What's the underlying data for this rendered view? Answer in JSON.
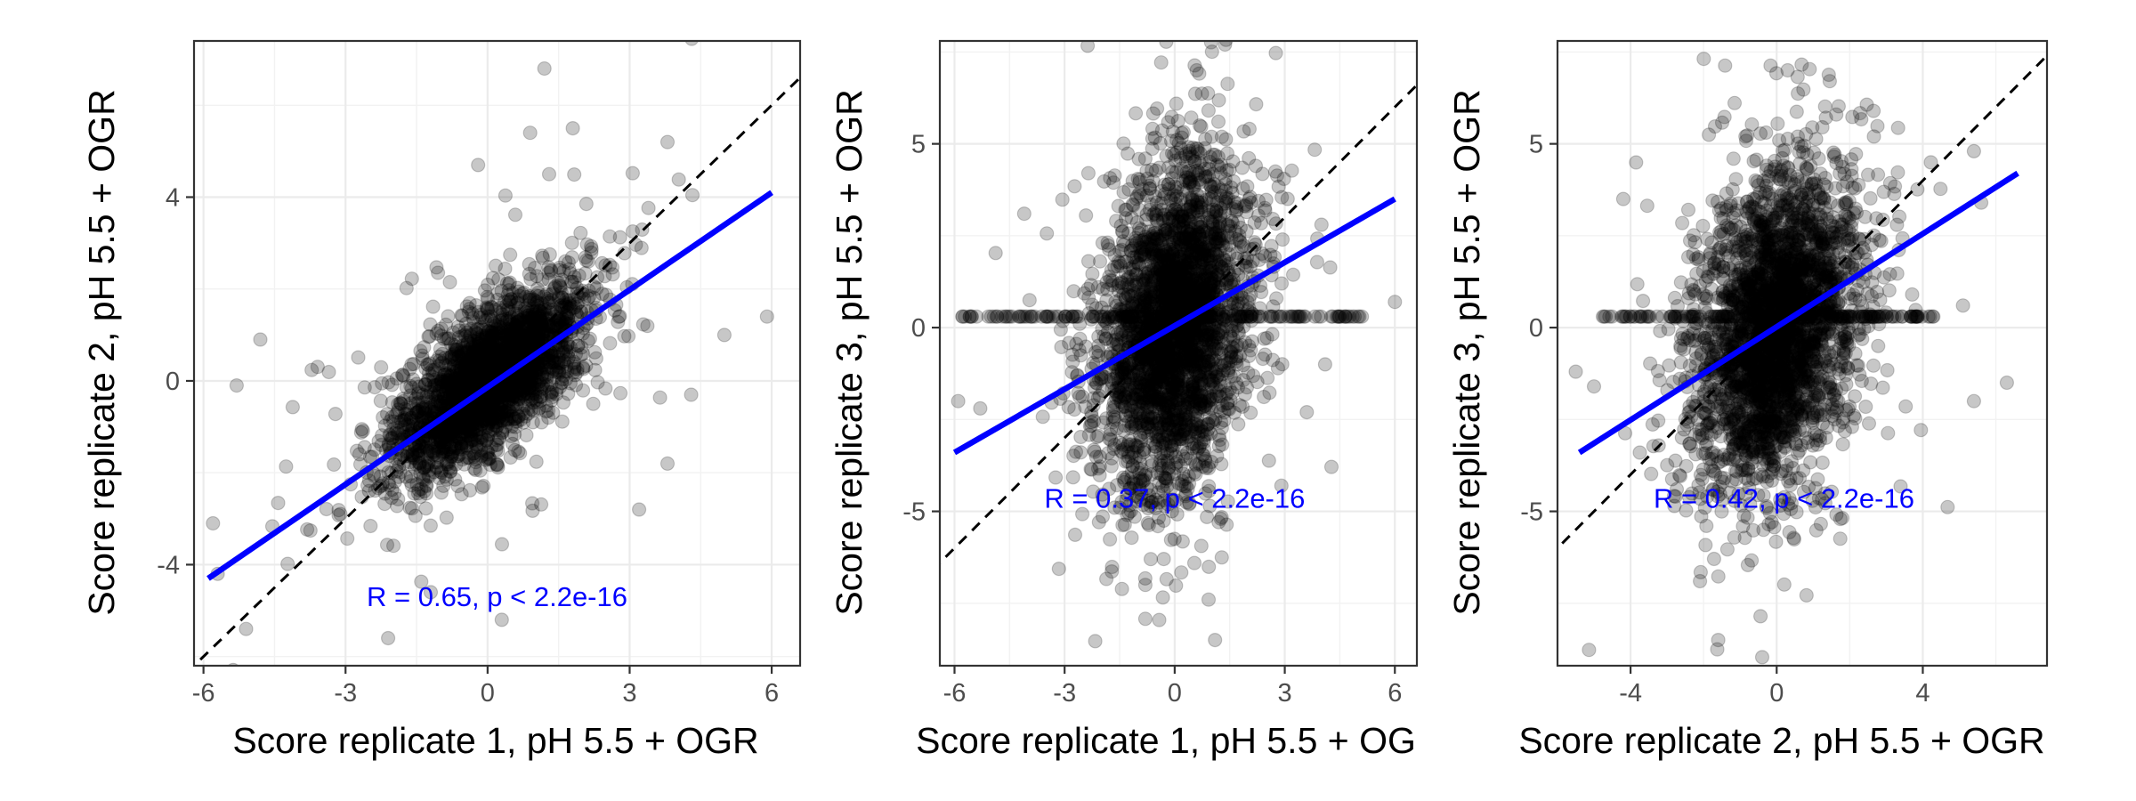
{
  "chart_data": [
    {
      "type": "scatter",
      "xlabel": "Score replicate 1, pH 5.5 + OGR",
      "ylabel": "Score replicate 2, pH 5.5 + OGR",
      "xlim": [
        -6.2,
        6.6
      ],
      "ylim": [
        -6.2,
        7.4
      ],
      "xticks": [
        -6,
        -3,
        0,
        3,
        6
      ],
      "xtick_labels": [
        "-6",
        "-3",
        "0",
        "3",
        "6"
      ],
      "yticks": [
        -4,
        0,
        4
      ],
      "ytick_labels": [
        "-4",
        "0",
        "4"
      ],
      "grid": true,
      "point_color": "#000000",
      "point_alpha": 0.22,
      "cloud": {
        "n": 2600,
        "x_mean": 0,
        "x_sd": 1.0,
        "y_sd": 1.0,
        "slope": 0.65,
        "resid_sd": 0.75,
        "outlier_frac": 0.06
      },
      "outliers": [
        {
          "x": 1.2,
          "y": 6.8
        },
        {
          "x": 0.9,
          "y": 5.4
        },
        {
          "x": 1.8,
          "y": 5.5
        },
        {
          "x": 3.8,
          "y": 5.2
        },
        {
          "x": -0.2,
          "y": 4.7
        },
        {
          "x": 1.3,
          "y": 4.5
        },
        {
          "x": -5.8,
          "y": -3.1
        },
        {
          "x": -5.7,
          "y": -4.2
        },
        {
          "x": -5.1,
          "y": -5.4
        },
        {
          "x": 0.3,
          "y": -5.2
        },
        {
          "x": -2.1,
          "y": -5.6
        },
        {
          "x": -1.2,
          "y": -4.6
        },
        {
          "x": 5.9,
          "y": 1.4
        },
        {
          "x": 5.0,
          "y": 1.0
        },
        {
          "x": 4.3,
          "y": -0.3
        },
        {
          "x": 3.8,
          "y": -1.8
        },
        {
          "x": 3.2,
          "y": -2.8
        },
        {
          "x": -4.8,
          "y": 0.9
        },
        {
          "x": -5.3,
          "y": -0.1
        }
      ],
      "regression_line": {
        "x": [
          -5.9,
          6.0
        ],
        "y": [
          -4.3,
          4.1
        ],
        "color": "#0000ff"
      },
      "identity_line": {
        "slope": 1,
        "intercept": 0,
        "color": "#000000",
        "style": "dashed"
      },
      "annotation": {
        "text": "R = 0.65, p < 2.2e-16",
        "x": 0.2,
        "y": -4.9
      }
    },
    {
      "type": "scatter",
      "xlabel": "Score replicate 1, pH 5.5 + OG",
      "ylabel": "Score replicate 3, pH 5.5 + OGR",
      "xlim": [
        -6.4,
        6.6
      ],
      "ylim": [
        -9.2,
        7.8
      ],
      "xticks": [
        -6,
        -3,
        0,
        3,
        6
      ],
      "xtick_labels": [
        "-6",
        "-3",
        "0",
        "3",
        "6"
      ],
      "yticks": [
        -5,
        0,
        5
      ],
      "ytick_labels": [
        "-5",
        "0",
        "5"
      ],
      "grid": true,
      "point_color": "#000000",
      "point_alpha": 0.22,
      "cloud": {
        "n": 3000,
        "x_mean": 0,
        "x_sd": 1.0,
        "y_sd": 2.4,
        "slope": 0.55,
        "resid_sd": 2.2,
        "outlier_frac": 0.04
      },
      "zero_band": {
        "y": 0.3,
        "x_range": [
          -5.9,
          5.2
        ],
        "n": 160
      },
      "outliers": [
        {
          "x": 0.6,
          "y": 7.0
        },
        {
          "x": -4.1,
          "y": 3.1
        },
        {
          "x": -5.3,
          "y": -2.2
        },
        {
          "x": -5.9,
          "y": -2.0
        },
        {
          "x": 1.1,
          "y": -8.5
        },
        {
          "x": -0.8,
          "y": -7.0
        },
        {
          "x": 6.0,
          "y": 0.7
        },
        {
          "x": 4.1,
          "y": -1.0
        },
        {
          "x": 4.0,
          "y": 2.8
        },
        {
          "x": 3.6,
          "y": -2.3
        }
      ],
      "regression_line": {
        "x": [
          -6.0,
          6.0
        ],
        "y": [
          -3.4,
          3.5
        ],
        "color": "#0000ff"
      },
      "identity_line": {
        "slope": 1,
        "intercept": 0,
        "color": "#000000",
        "style": "dashed"
      },
      "annotation": {
        "text": "R = 0.37, p < 2.2e-16",
        "x": 0.0,
        "y": -4.9
      }
    },
    {
      "type": "scatter",
      "xlabel": "Score replicate 2, pH 5.5 + OGR",
      "ylabel": "Score replicate 3, pH 5.5 + OGR",
      "xlim": [
        -6.0,
        7.4
      ],
      "ylim": [
        -9.2,
        7.8
      ],
      "xticks": [
        -4,
        0,
        4
      ],
      "xtick_labels": [
        "-4",
        "0",
        "4"
      ],
      "yticks": [
        -5,
        0,
        5
      ],
      "ytick_labels": [
        "-5",
        "0",
        "5"
      ],
      "grid": true,
      "point_color": "#000000",
      "point_alpha": 0.22,
      "cloud": {
        "n": 3000,
        "x_mean": 0,
        "x_sd": 1.1,
        "y_sd": 2.4,
        "slope": 0.6,
        "resid_sd": 2.1,
        "outlier_frac": 0.04
      },
      "zero_band": {
        "y": 0.3,
        "x_range": [
          -4.8,
          4.3
        ],
        "n": 150
      },
      "outliers": [
        {
          "x": 0.3,
          "y": 7.0
        },
        {
          "x": -4.2,
          "y": 3.5
        },
        {
          "x": -5.5,
          "y": -1.2
        },
        {
          "x": -5.0,
          "y": -1.6
        },
        {
          "x": -1.6,
          "y": -8.5
        },
        {
          "x": 6.3,
          "y": -1.5
        },
        {
          "x": 5.4,
          "y": -2.0
        },
        {
          "x": 5.1,
          "y": 0.6
        },
        {
          "x": 5.4,
          "y": 4.8
        },
        {
          "x": -2.1,
          "y": -6.9
        },
        {
          "x": 5.6,
          "y": 3.4
        }
      ],
      "regression_line": {
        "x": [
          -5.4,
          6.6
        ],
        "y": [
          -3.4,
          4.2
        ],
        "color": "#0000ff"
      },
      "identity_line": {
        "slope": 1,
        "intercept": 0,
        "color": "#000000",
        "style": "dashed"
      },
      "annotation": {
        "text": "R = 0.42, p < 2.2e-16",
        "x": 0.2,
        "y": -4.9
      }
    }
  ]
}
